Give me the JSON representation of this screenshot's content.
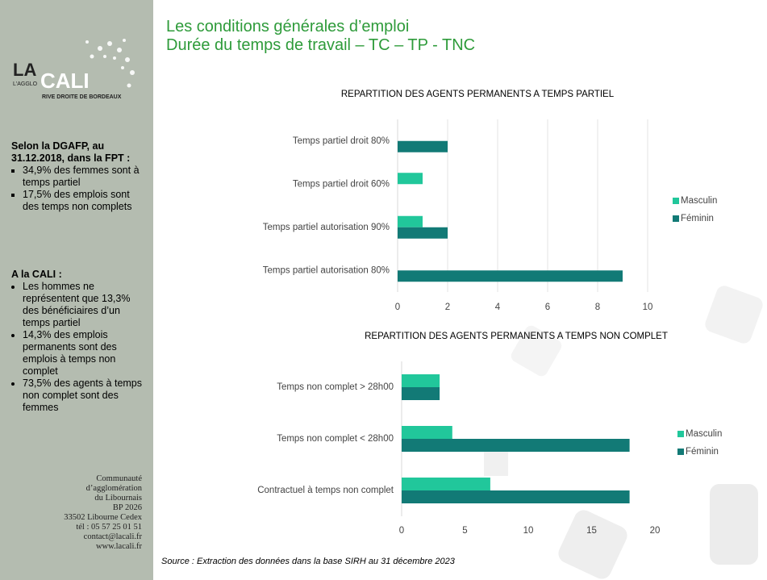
{
  "logo": {
    "la": "LA",
    "cali": "CALI",
    "agglo": "L'AGGLO",
    "rive": "RIVE DROITE DE BORDEAUX"
  },
  "header": {
    "title": "Les conditions générales d’emploi",
    "subtitle": "Durée du temps de travail – TC – TP - TNC"
  },
  "sidebar": {
    "dgafp": {
      "heading": "Selon la DGAFP, au 31.12.2018, dans la FPT :",
      "items": [
        "34,9% des femmes sont à temps partiel",
        "17,5% des emplois sont des temps non complets"
      ]
    },
    "cali": {
      "heading": "A la CALI :",
      "items": [
        "Les hommes ne représentent que 13,3% des bénéficiaires d’un temps partiel",
        "14,3% des emplois permanents sont des emplois à temps non complet",
        "73,5% des agents à temps non complet sont des femmes"
      ]
    },
    "address": [
      "Communauté",
      "d’agglomération",
      "du Libournais",
      "BP 2026",
      "33502 Libourne Cedex",
      "tél : 05 57 25 01 51",
      "contact@lacali.fr",
      "www.lacali.fr"
    ]
  },
  "source": "Source : Extraction des données dans la base SIRH au 31 décembre 2023",
  "chart_data": [
    {
      "type": "hbar",
      "title": "REPARTITION DES AGENTS PERMANENTS A TEMPS PARTIEL",
      "categories": [
        "Temps partiel droit 80%",
        "Temps partiel droit 60%",
        "Temps partiel autorisation 90%",
        "Temps partiel autorisation 80%"
      ],
      "series": [
        {
          "name": "Masculin",
          "color": "#21c79b",
          "values": [
            0,
            1,
            1,
            0
          ]
        },
        {
          "name": "Féminin",
          "color": "#127a76",
          "values": [
            2,
            0,
            2,
            9
          ]
        }
      ],
      "xlim": [
        0,
        10
      ],
      "xticks": [
        0,
        2,
        4,
        6,
        8,
        10
      ],
      "grid": true,
      "legend": "right"
    },
    {
      "type": "hbar",
      "title": "REPARTITION DES AGENTS PERMANENTS A TEMPS NON COMPLET",
      "categories": [
        "Temps non complet > 28h00",
        "Temps non complet < 28h00",
        "Contractuel à temps non complet"
      ],
      "series": [
        {
          "name": "Masculin",
          "color": "#21c79b",
          "values": [
            3,
            4,
            7
          ]
        },
        {
          "name": "Féminin",
          "color": "#127a76",
          "values": [
            3,
            18,
            18
          ]
        }
      ],
      "xlim": [
        0,
        20
      ],
      "xticks": [
        0,
        5,
        10,
        15,
        20
      ],
      "grid": false,
      "legend": "right"
    }
  ]
}
